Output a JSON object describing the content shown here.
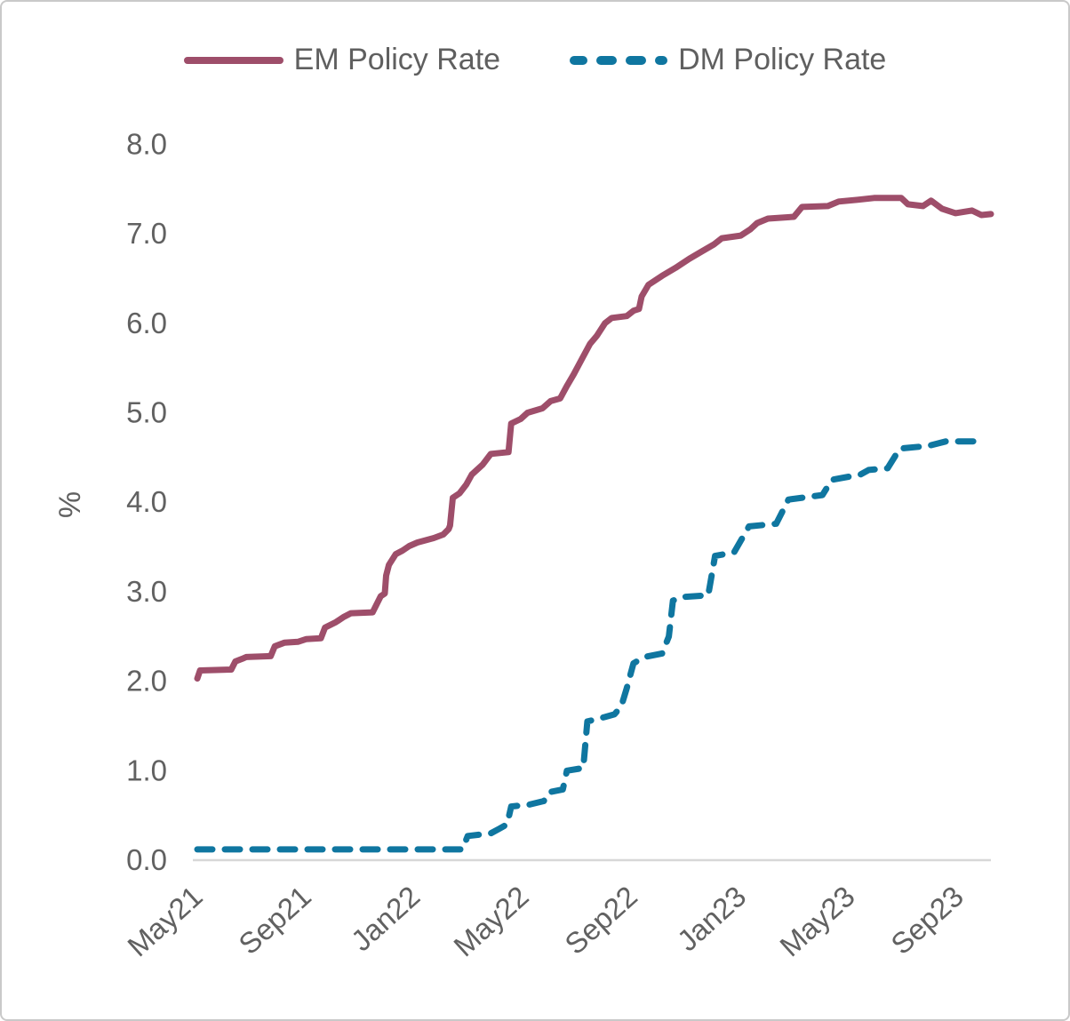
{
  "chart_data": {
    "type": "line",
    "title": "",
    "xlabel": "",
    "ylabel": "%",
    "ylim": [
      0,
      8
    ],
    "x_range_months": [
      0,
      29.2
    ],
    "grid": "off",
    "legend_position": "top",
    "axis_start_label": "May21",
    "y_ticks": [
      {
        "value": 0,
        "label": "0.0"
      },
      {
        "value": 1,
        "label": "1.0"
      },
      {
        "value": 2,
        "label": "2.0"
      },
      {
        "value": 3,
        "label": "3.0"
      },
      {
        "value": 4,
        "label": "4.0"
      },
      {
        "value": 5,
        "label": "5.0"
      },
      {
        "value": 6,
        "label": "6.0"
      },
      {
        "value": 7,
        "label": "7.0"
      },
      {
        "value": 8,
        "label": "8.0"
      }
    ],
    "x_ticks": [
      {
        "month": 0,
        "label": "May21"
      },
      {
        "month": 4,
        "label": "Sep21"
      },
      {
        "month": 8,
        "label": "Jan22"
      },
      {
        "month": 12,
        "label": "May22"
      },
      {
        "month": 16,
        "label": "Sep22"
      },
      {
        "month": 20,
        "label": "Jan23"
      },
      {
        "month": 24,
        "label": "May23"
      },
      {
        "month": 28,
        "label": "Sep23"
      }
    ],
    "series": [
      {
        "name": "EM Policy Rate",
        "color": "#9e4e6a",
        "line_style": "solid",
        "points": [
          [
            0,
            2.03
          ],
          [
            0.1,
            2.12
          ],
          [
            1.25,
            2.13
          ],
          [
            1.4,
            2.22
          ],
          [
            1.65,
            2.25
          ],
          [
            1.8,
            2.27
          ],
          [
            2.7,
            2.28
          ],
          [
            2.85,
            2.39
          ],
          [
            3.2,
            2.43
          ],
          [
            3.7,
            2.44
          ],
          [
            4.0,
            2.47
          ],
          [
            4.55,
            2.48
          ],
          [
            4.7,
            2.6
          ],
          [
            5.1,
            2.66
          ],
          [
            5.4,
            2.72
          ],
          [
            5.65,
            2.76
          ],
          [
            6.45,
            2.77
          ],
          [
            6.75,
            2.95
          ],
          [
            6.9,
            2.98
          ],
          [
            6.95,
            3.18
          ],
          [
            7.05,
            3.3
          ],
          [
            7.3,
            3.42
          ],
          [
            7.55,
            3.46
          ],
          [
            7.8,
            3.51
          ],
          [
            8.1,
            3.55
          ],
          [
            8.7,
            3.6
          ],
          [
            9.05,
            3.64
          ],
          [
            9.25,
            3.7
          ],
          [
            9.3,
            3.74
          ],
          [
            9.4,
            4.05
          ],
          [
            9.65,
            4.1
          ],
          [
            9.9,
            4.2
          ],
          [
            10.1,
            4.31
          ],
          [
            10.5,
            4.42
          ],
          [
            10.8,
            4.54
          ],
          [
            11.45,
            4.56
          ],
          [
            11.55,
            4.88
          ],
          [
            11.9,
            4.93
          ],
          [
            12.15,
            5.0
          ],
          [
            12.7,
            5.05
          ],
          [
            13.0,
            5.13
          ],
          [
            13.35,
            5.16
          ],
          [
            13.6,
            5.3
          ],
          [
            13.85,
            5.43
          ],
          [
            14.15,
            5.6
          ],
          [
            14.45,
            5.77
          ],
          [
            14.7,
            5.86
          ],
          [
            15.0,
            6.0
          ],
          [
            15.25,
            6.06
          ],
          [
            15.8,
            6.08
          ],
          [
            16.05,
            6.14
          ],
          [
            16.25,
            6.16
          ],
          [
            16.35,
            6.3
          ],
          [
            16.6,
            6.43
          ],
          [
            17.1,
            6.53
          ],
          [
            17.6,
            6.62
          ],
          [
            18.1,
            6.72
          ],
          [
            18.55,
            6.8
          ],
          [
            19.0,
            6.88
          ],
          [
            19.3,
            6.95
          ],
          [
            20.0,
            6.98
          ],
          [
            20.35,
            7.05
          ],
          [
            20.6,
            7.12
          ],
          [
            21.0,
            7.17
          ],
          [
            21.95,
            7.19
          ],
          [
            22.25,
            7.3
          ],
          [
            23.2,
            7.31
          ],
          [
            23.6,
            7.36
          ],
          [
            24.3,
            7.38
          ],
          [
            24.9,
            7.4
          ],
          [
            25.9,
            7.4
          ],
          [
            26.15,
            7.33
          ],
          [
            26.7,
            7.31
          ],
          [
            27.0,
            7.37
          ],
          [
            27.4,
            7.28
          ],
          [
            27.9,
            7.23
          ],
          [
            28.5,
            7.26
          ],
          [
            28.85,
            7.21
          ],
          [
            29.2,
            7.22
          ]
        ]
      },
      {
        "name": "DM Policy Rate",
        "color": "#0f76a0",
        "line_style": "dashed",
        "points": [
          [
            0,
            0.12
          ],
          [
            9.75,
            0.12
          ],
          [
            9.95,
            0.27
          ],
          [
            10.8,
            0.3
          ],
          [
            11.1,
            0.35
          ],
          [
            11.4,
            0.4
          ],
          [
            11.55,
            0.6
          ],
          [
            12.2,
            0.62
          ],
          [
            12.75,
            0.66
          ],
          [
            12.95,
            0.76
          ],
          [
            13.45,
            0.79
          ],
          [
            13.6,
            1.0
          ],
          [
            14.2,
            1.03
          ],
          [
            14.35,
            1.55
          ],
          [
            15.0,
            1.6
          ],
          [
            15.35,
            1.63
          ],
          [
            15.6,
            1.72
          ],
          [
            15.8,
            1.92
          ],
          [
            16.05,
            2.2
          ],
          [
            16.45,
            2.27
          ],
          [
            17.1,
            2.31
          ],
          [
            17.35,
            2.5
          ],
          [
            17.5,
            2.9
          ],
          [
            17.8,
            2.94
          ],
          [
            18.8,
            2.96
          ],
          [
            19.05,
            3.4
          ],
          [
            19.75,
            3.44
          ],
          [
            20.3,
            3.73
          ],
          [
            21.3,
            3.76
          ],
          [
            21.75,
            4.03
          ],
          [
            23.0,
            4.08
          ],
          [
            23.35,
            4.25
          ],
          [
            24.4,
            4.31
          ],
          [
            24.7,
            4.36
          ],
          [
            25.4,
            4.38
          ],
          [
            25.85,
            4.6
          ],
          [
            26.9,
            4.63
          ],
          [
            27.55,
            4.68
          ],
          [
            29.0,
            4.68
          ]
        ]
      }
    ]
  }
}
